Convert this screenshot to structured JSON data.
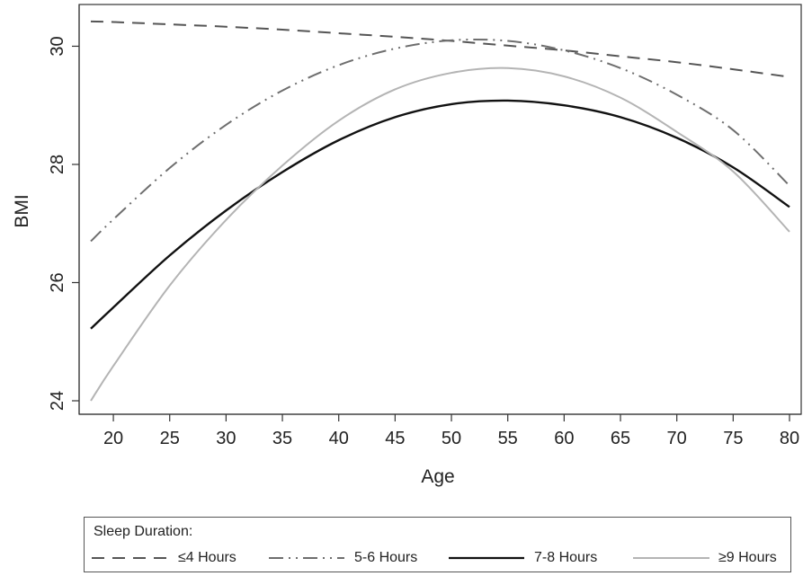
{
  "chart_data": {
    "type": "line",
    "title": "",
    "xlabel": "Age",
    "ylabel": "BMI",
    "xlim": [
      18,
      80
    ],
    "ylim": [
      24,
      30.6
    ],
    "xticks": [
      20,
      25,
      30,
      35,
      40,
      45,
      50,
      55,
      60,
      65,
      70,
      75,
      80
    ],
    "yticks": [
      24,
      26,
      28,
      30
    ],
    "grid": false,
    "legend": {
      "title": "Sleep Duration:",
      "placement": "bottom"
    },
    "x": [
      18,
      20,
      25,
      30,
      35,
      40,
      45,
      50,
      55,
      60,
      65,
      70,
      75,
      80
    ],
    "series": [
      {
        "name": "≤4 Hours",
        "color": "#555555",
        "dash": "long-dash",
        "values": [
          30.42,
          30.41,
          30.37,
          30.33,
          30.28,
          30.22,
          30.16,
          30.09,
          30.01,
          29.93,
          29.83,
          29.73,
          29.61,
          29.48
        ]
      },
      {
        "name": "5-6 Hours",
        "color": "#6e6e6e",
        "dash": "dash-dot-dot",
        "values": [
          26.7,
          27.07,
          27.94,
          28.67,
          29.25,
          29.68,
          29.96,
          30.1,
          30.09,
          29.93,
          29.63,
          29.18,
          28.58,
          27.64
        ]
      },
      {
        "name": "7-8 Hours",
        "color": "#111111",
        "dash": "solid",
        "values": [
          25.22,
          25.58,
          26.46,
          27.22,
          27.87,
          28.41,
          28.8,
          29.02,
          29.08,
          29.0,
          28.8,
          28.45,
          27.95,
          27.28
        ]
      },
      {
        "name": "≥9 Hours",
        "color": "#b4b4b4",
        "dash": "solid",
        "values": [
          24.0,
          24.59,
          25.95,
          27.06,
          27.98,
          28.74,
          29.27,
          29.55,
          29.63,
          29.49,
          29.13,
          28.55,
          27.88,
          26.86
        ]
      }
    ]
  }
}
